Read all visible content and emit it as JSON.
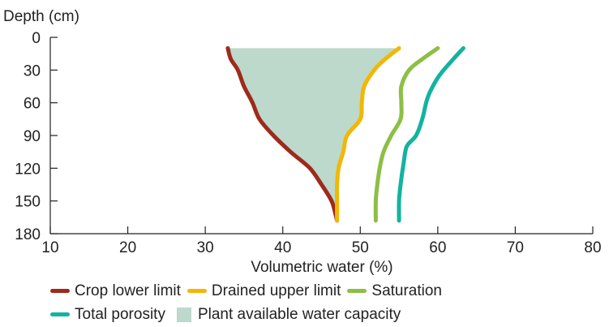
{
  "chart_data": {
    "type": "line",
    "ylabel": "Depth (cm)",
    "xlabel": "Volumetric water (%)",
    "xlim": [
      10,
      80
    ],
    "ylim": [
      0,
      180
    ],
    "y_inverted": true,
    "x_ticks": [
      10,
      20,
      30,
      40,
      50,
      60,
      70,
      80
    ],
    "y_ticks": [
      0,
      30,
      60,
      90,
      120,
      150,
      180
    ],
    "legend_position": "bottom",
    "series": [
      {
        "name": "Crop lower limit",
        "color": "#9e2a1b",
        "points": [
          [
            32.9,
            10
          ],
          [
            33.3,
            20
          ],
          [
            34.2,
            30
          ],
          [
            35.0,
            45
          ],
          [
            36.1,
            60
          ],
          [
            37.0,
            75
          ],
          [
            38.8,
            90
          ],
          [
            41.0,
            105
          ],
          [
            43.5,
            120
          ],
          [
            45.0,
            135
          ],
          [
            46.3,
            150
          ],
          [
            46.8,
            162
          ],
          [
            47.0,
            168
          ]
        ]
      },
      {
        "name": "Drained upper limit",
        "color": "#f2b705",
        "points": [
          [
            55.0,
            10
          ],
          [
            53.2,
            20
          ],
          [
            51.8,
            30
          ],
          [
            50.5,
            45
          ],
          [
            50.2,
            60
          ],
          [
            50.0,
            75
          ],
          [
            48.3,
            90
          ],
          [
            47.8,
            105
          ],
          [
            47.2,
            120
          ],
          [
            47.0,
            135
          ],
          [
            47.0,
            150
          ],
          [
            47.0,
            168
          ]
        ]
      },
      {
        "name": "Saturation",
        "color": "#8cbf44",
        "points": [
          [
            60.0,
            10
          ],
          [
            58.0,
            20
          ],
          [
            56.3,
            30
          ],
          [
            55.3,
            45
          ],
          [
            55.3,
            60
          ],
          [
            55.2,
            75
          ],
          [
            54.0,
            90
          ],
          [
            53.0,
            105
          ],
          [
            52.5,
            120
          ],
          [
            52.2,
            135
          ],
          [
            52.0,
            150
          ],
          [
            52.0,
            168
          ]
        ]
      },
      {
        "name": "Total porosity",
        "color": "#13b3a0",
        "points": [
          [
            63.3,
            10
          ],
          [
            62.0,
            20
          ],
          [
            60.2,
            35
          ],
          [
            59.0,
            50
          ],
          [
            58.5,
            60
          ],
          [
            58.0,
            75
          ],
          [
            57.2,
            90
          ],
          [
            56.0,
            100
          ],
          [
            55.6,
            115
          ],
          [
            55.2,
            135
          ],
          [
            55.0,
            150
          ],
          [
            55.0,
            168
          ]
        ]
      }
    ],
    "area": {
      "name": "Plant available water capacity",
      "color": "#bcd9cb",
      "lower_series": "Crop lower limit",
      "upper_series": "Drained upper limit"
    }
  },
  "legend": {
    "rows": [
      [
        {
          "label": "Crop lower limit",
          "kind": "line",
          "color": "#9e2a1b"
        },
        {
          "label": "Drained upper limit",
          "kind": "line",
          "color": "#f2b705"
        },
        {
          "label": "Saturation",
          "kind": "line",
          "color": "#8cbf44"
        }
      ],
      [
        {
          "label": "Total porosity",
          "kind": "line",
          "color": "#13b3a0"
        },
        {
          "label": "Plant available water capacity",
          "kind": "box",
          "color": "#bcd9cb"
        }
      ]
    ]
  }
}
